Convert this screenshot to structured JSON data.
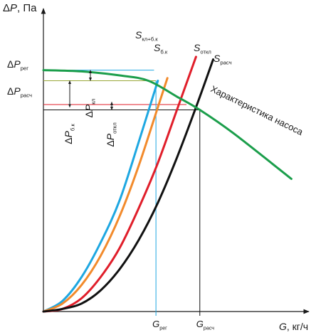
{
  "chart_data": {
    "type": "line",
    "title": "",
    "ylabel": {
      "prefix": "Δ",
      "main": "P",
      "suffix": ", Па"
    },
    "xlabel": {
      "main": "G",
      "suffix": ", кг/ч"
    },
    "xlim": [
      0,
      100
    ],
    "ylim": [
      0,
      100
    ],
    "grid": false,
    "legend": "none",
    "series": [
      {
        "key": "s_kl_bk",
        "label": {
          "main": "S",
          "sub": "кл+б.к"
        },
        "color": "#1ea7e1",
        "points": [
          [
            0,
            0
          ],
          [
            10,
            4
          ],
          [
            20,
            13
          ],
          [
            30,
            26
          ],
          [
            40,
            42
          ],
          [
            50,
            64
          ],
          [
            60,
            87
          ]
        ]
      },
      {
        "key": "s_bk",
        "label": {
          "main": "S",
          "sub": "б.к"
        },
        "color": "#f28a2b",
        "points": [
          [
            0,
            0
          ],
          [
            10,
            3
          ],
          [
            20,
            10
          ],
          [
            30,
            21
          ],
          [
            40,
            36
          ],
          [
            50,
            55
          ],
          [
            60,
            77
          ],
          [
            65,
            88
          ]
        ]
      },
      {
        "key": "s_otkl",
        "label": {
          "main": "S",
          "sub": "откл"
        },
        "color": "#e01e2a",
        "points": [
          [
            0,
            0
          ],
          [
            10,
            1
          ],
          [
            20,
            5
          ],
          [
            30,
            13
          ],
          [
            40,
            24
          ],
          [
            50,
            39
          ],
          [
            60,
            56
          ],
          [
            70,
            76
          ],
          [
            80,
            96
          ]
        ]
      },
      {
        "key": "s_rasch",
        "label": {
          "main": "S",
          "sub": "расч"
        },
        "color": "#111111",
        "points": [
          [
            0,
            0
          ],
          [
            10,
            1
          ],
          [
            20,
            3
          ],
          [
            30,
            8
          ],
          [
            40,
            16
          ],
          [
            50,
            27
          ],
          [
            60,
            41
          ],
          [
            70,
            58
          ],
          [
            80,
            77
          ],
          [
            89,
            95
          ]
        ]
      },
      {
        "key": "pump",
        "label": {
          "main": "Характеристика насоса",
          "sub": ""
        },
        "color": "#1b9e4b",
        "points": [
          [
            0,
            91
          ],
          [
            20,
            90.5
          ],
          [
            40,
            89
          ],
          [
            55,
            87
          ],
          [
            70,
            81
          ],
          [
            82,
            76
          ],
          [
            100,
            67
          ],
          [
            130,
            50
          ]
        ]
      }
    ],
    "levels": [
      {
        "key": "p_reg",
        "label": {
          "prefix": "Δ",
          "main": "P",
          "sub": "рег"
        },
        "value": 87
      },
      {
        "key": "p_rasch",
        "label": {
          "prefix": "Δ",
          "main": "P",
          "sub": "расч"
        },
        "value": 76
      }
    ],
    "flows": [
      {
        "key": "g_reg",
        "label": {
          "main": "G",
          "sub": "рег"
        },
        "value": 59
      },
      {
        "key": "g_rasch",
        "label": {
          "main": "G",
          "sub": "расч"
        },
        "value": 82
      }
    ],
    "differences": [
      {
        "key": "dp_bk",
        "label": {
          "prefix": "Δ",
          "main": "P",
          "sub": "б.к"
        },
        "from": 77,
        "to": 87
      },
      {
        "key": "dp_kl",
        "label": {
          "prefix": "Δ",
          "main": "P",
          "sub": "кл"
        },
        "from": 87,
        "to": 91
      },
      {
        "key": "dp_otkl",
        "label": {
          "prefix": "Δ",
          "main": "P",
          "sub": "откл"
        },
        "from": 76,
        "to": 79
      }
    ],
    "colors": {
      "cyan_line": "#1ea7e1",
      "orange_line": "#f28a2b",
      "red_line": "#e01e2a",
      "green_line": "#1b9e4b"
    },
    "annotation": "Характеристика насоса"
  }
}
